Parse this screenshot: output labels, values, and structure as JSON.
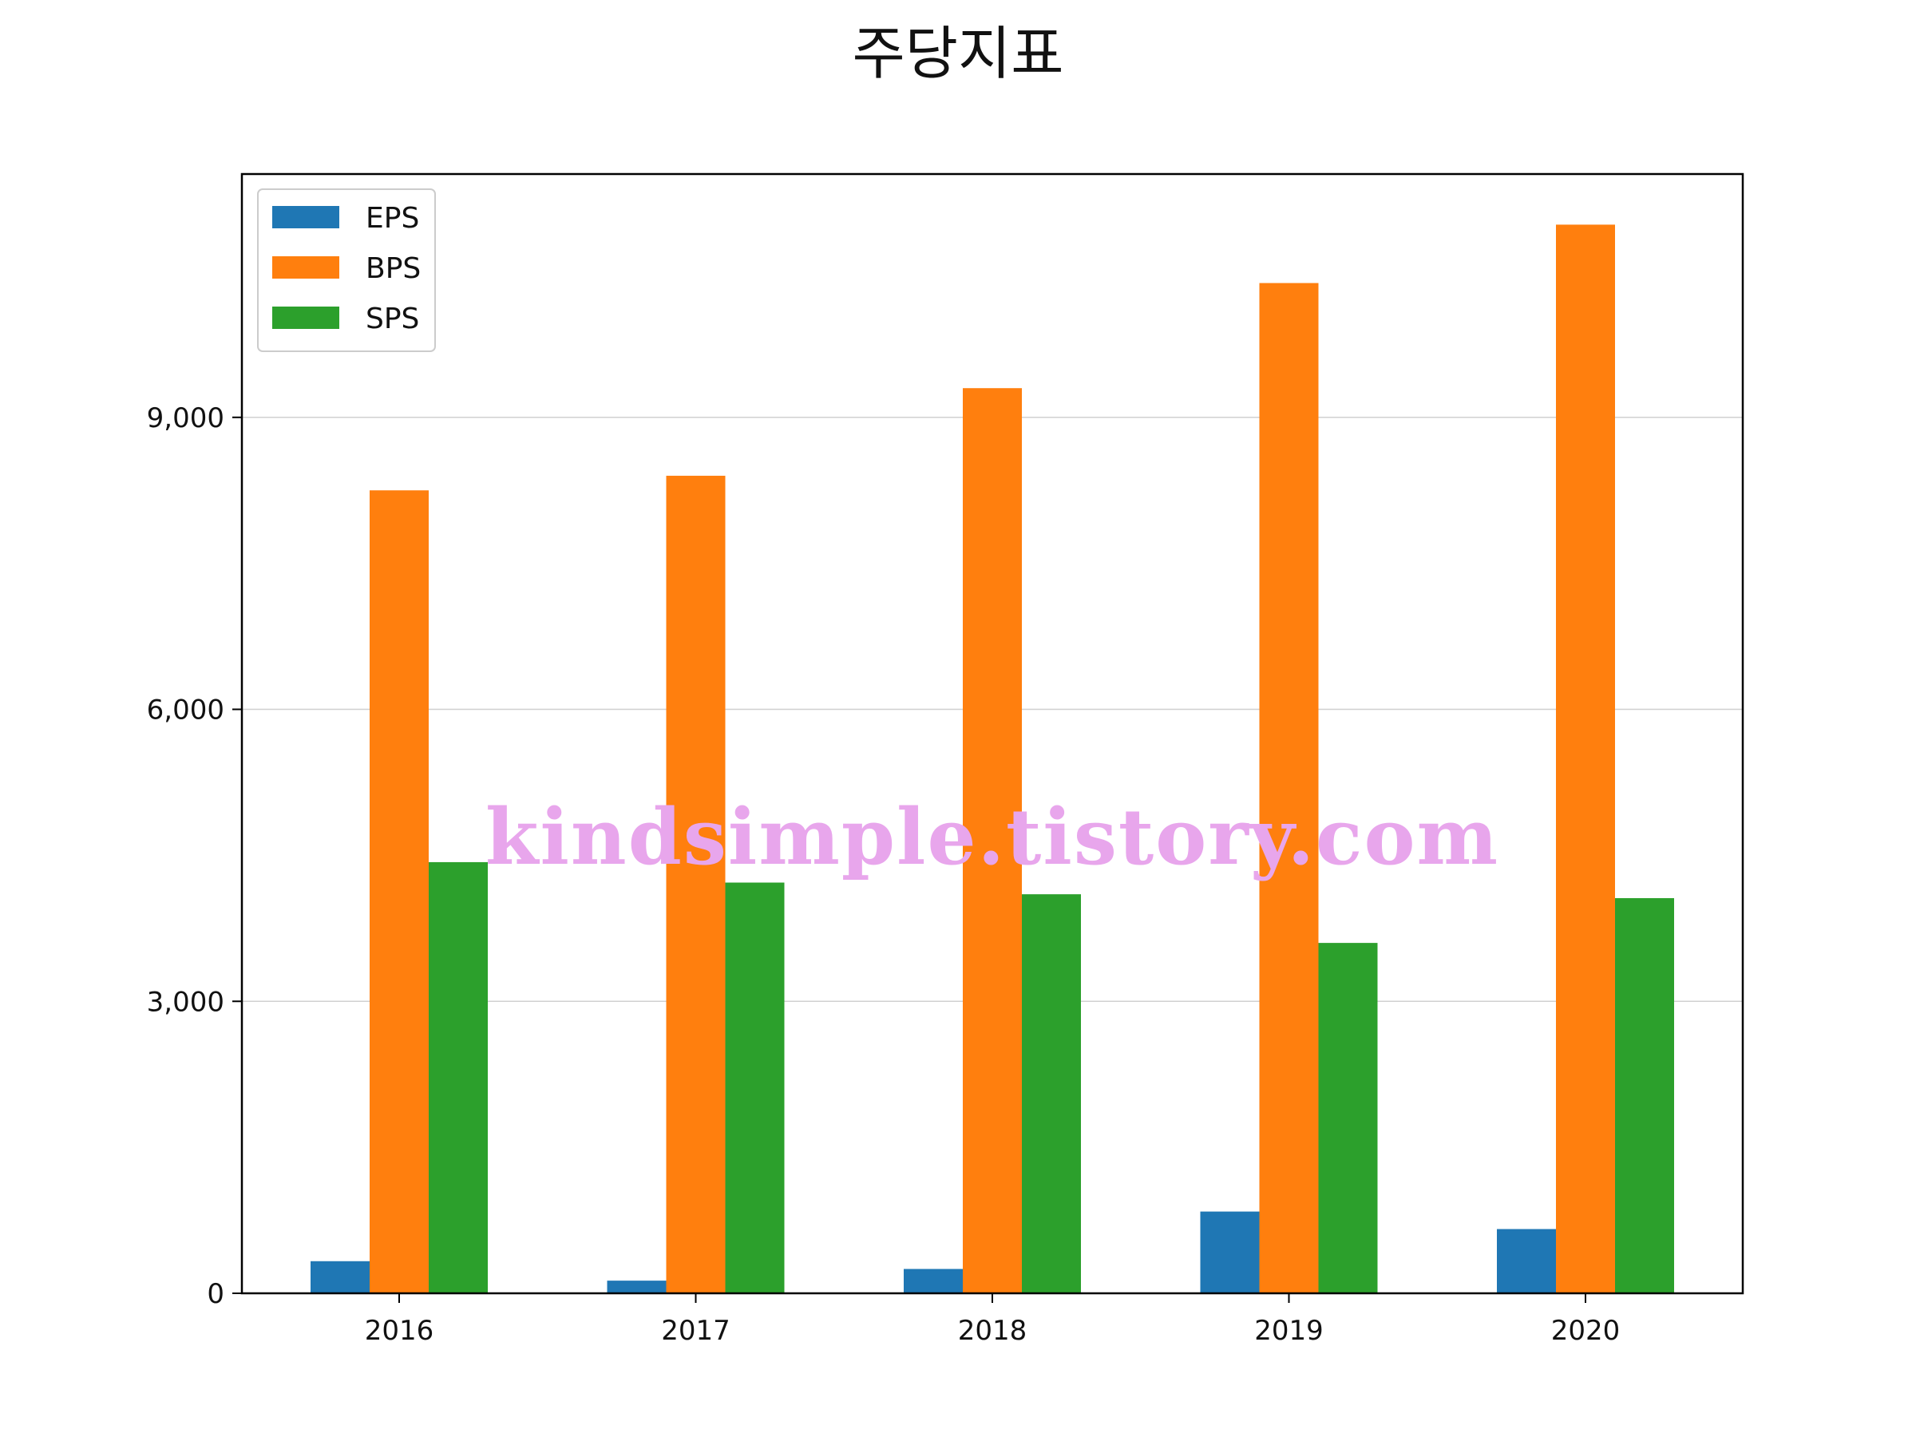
{
  "chart_data": {
    "type": "bar",
    "title": "주당지표",
    "categories": [
      "2016",
      "2017",
      "2018",
      "2019",
      "2020"
    ],
    "series": [
      {
        "name": "EPS",
        "color": "#1f77b4",
        "values": [
          330,
          130,
          250,
          840,
          660
        ]
      },
      {
        "name": "BPS",
        "color": "#ff7f0e",
        "values": [
          8250,
          8400,
          9300,
          10380,
          10980
        ]
      },
      {
        "name": "SPS",
        "color": "#2ca02c",
        "values": [
          4430,
          4220,
          4100,
          3600,
          4060
        ]
      }
    ],
    "xlabel": "",
    "ylabel": "",
    "ylim": [
      0,
      11500
    ],
    "yticks": [
      0,
      3000,
      6000,
      9000
    ],
    "ytick_labels": [
      "0",
      "3,000",
      "6,000",
      "9,000"
    ],
    "grid": "horizontal",
    "legend_position": "upper-left"
  },
  "watermark": "kindsimple.tistory.com"
}
